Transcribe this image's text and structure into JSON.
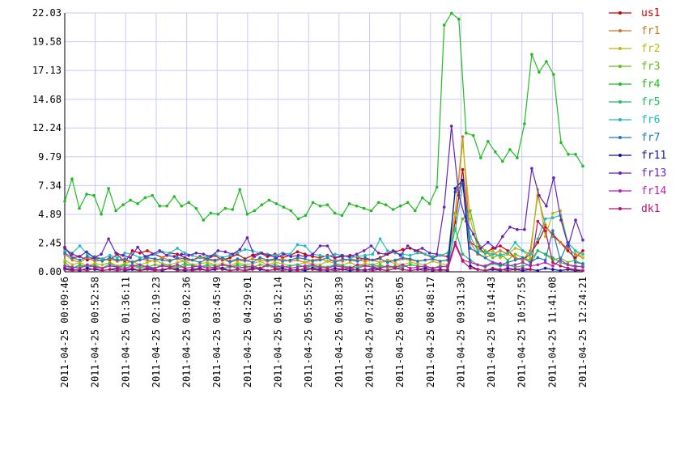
{
  "chart_data": {
    "type": "line",
    "title": "",
    "xlabel": "",
    "ylabel": "",
    "ylim": [
      0,
      22.03
    ],
    "grid": true,
    "legend_position": "right",
    "y_ticks": [
      "0.00",
      "2.45",
      "4.89",
      "7.34",
      "9.79",
      "12.24",
      "14.68",
      "17.13",
      "19.58",
      "22.03"
    ],
    "x_ticks": [
      "2011-04-25 00:09:46",
      "2011-04-25 00:52:58",
      "2011-04-25 01:36:11",
      "2011-04-25 02:19:23",
      "2011-04-25 03:02:36",
      "2011-04-25 03:45:49",
      "2011-04-25 04:29:01",
      "2011-04-25 05:12:14",
      "2011-04-25 05:55:27",
      "2011-04-25 06:38:39",
      "2011-04-25 07:21:52",
      "2011-04-25 08:05:05",
      "2011-04-25 08:48:17",
      "2011-04-25 09:31:30",
      "2011-04-25 10:14:43",
      "2011-04-25 10:57:55",
      "2011-04-25 11:41:08",
      "2011-04-25 12:24:21"
    ],
    "series": [
      {
        "name": "us1",
        "color": "#cc0000",
        "values": [
          2.1,
          1.2,
          1.3,
          1.0,
          1.2,
          1.1,
          1.0,
          1.5,
          0.8,
          1.8,
          1.6,
          1.8,
          1.5,
          1.2,
          1.6,
          1.5,
          1.2,
          1.0,
          1.3,
          1.1,
          1.4,
          1.0,
          1.2,
          1.5,
          1.1,
          1.4,
          1.6,
          1.3,
          1.5,
          1.2,
          1.4,
          1.7,
          1.5,
          1.3,
          1.2,
          1.4,
          1.2,
          1.3,
          1.4,
          1.2,
          1.1,
          1.0,
          1.2,
          1.5,
          1.7,
          1.9,
          2.0,
          1.8,
          1.5,
          1.2,
          1.4,
          1.3,
          4.2,
          8.7,
          2.5,
          2.1,
          1.6,
          2.0,
          2.2,
          1.8,
          1.2,
          1.0,
          1.5,
          2.5,
          3.8,
          3.2,
          2.5,
          1.8,
          1.2,
          1.8
        ]
      },
      {
        "name": "fr1",
        "color": "#cc7722",
        "values": [
          1.5,
          1.0,
          0.8,
          1.2,
          0.9,
          1.0,
          1.1,
          0.9,
          1.0,
          0.8,
          1.1,
          1.0,
          0.9,
          1.2,
          1.0,
          1.1,
          0.9,
          1.0,
          1.2,
          1.0,
          0.9,
          1.1,
          0.8,
          1.0,
          0.9,
          1.1,
          1.0,
          0.9,
          1.0,
          1.1,
          0.9,
          1.0,
          0.8,
          1.0,
          1.1,
          0.9,
          1.0,
          0.9,
          1.1,
          1.0,
          0.9,
          1.0,
          0.8,
          1.0,
          0.9,
          1.1,
          1.0,
          0.9,
          1.0,
          1.1,
          0.9,
          1.0,
          5.0,
          11.5,
          2.5,
          1.5,
          1.2,
          1.5,
          1.8,
          1.5,
          1.2,
          1.0,
          1.8,
          6.5,
          4.0,
          3.0,
          2.5,
          2.0,
          1.5,
          1.2
        ]
      },
      {
        "name": "fr2",
        "color": "#bbbb11",
        "values": [
          1.0,
          0.6,
          0.8,
          0.5,
          0.7,
          0.6,
          0.8,
          0.5,
          0.7,
          0.9,
          0.6,
          0.8,
          1.0,
          0.7,
          0.6,
          0.8,
          0.9,
          0.6,
          0.7,
          0.8,
          0.6,
          0.7,
          0.5,
          0.8,
          0.6,
          0.7,
          0.9,
          0.6,
          0.8,
          0.7,
          0.5,
          0.6,
          0.8,
          0.7,
          0.6,
          0.9,
          0.7,
          0.6,
          0.8,
          0.5,
          0.7,
          0.6,
          0.8,
          0.9,
          0.7,
          0.6,
          0.8,
          0.7,
          0.6,
          0.9,
          0.7,
          0.6,
          4.8,
          11.0,
          4.5,
          2.0,
          1.5,
          1.8,
          1.2,
          1.5,
          2.0,
          1.8,
          1.2,
          7.0,
          3.0,
          5.0,
          5.2,
          2.5,
          1.8,
          1.2
        ]
      },
      {
        "name": "fr3",
        "color": "#66bb22",
        "values": [
          0.8,
          0.3,
          0.5,
          0.4,
          0.6,
          0.3,
          0.5,
          0.4,
          0.6,
          0.5,
          0.3,
          0.4,
          0.6,
          0.5,
          0.4,
          0.3,
          0.5,
          0.6,
          0.4,
          0.5,
          0.3,
          0.6,
          0.4,
          0.5,
          0.3,
          0.4,
          0.6,
          0.5,
          0.3,
          0.4,
          0.5,
          0.6,
          0.4,
          0.3,
          0.5,
          0.4,
          0.6,
          0.5,
          0.3,
          0.4,
          0.5,
          0.4,
          0.6,
          0.3,
          0.5,
          0.4,
          0.6,
          0.5,
          0.4,
          0.3,
          0.5,
          0.4,
          2.5,
          4.5,
          5.2,
          2.5,
          1.8,
          1.2,
          1.5,
          1.0,
          1.5,
          1.2,
          1.0,
          1.8,
          1.5,
          1.0,
          1.2,
          0.8,
          1.0,
          0.6
        ]
      },
      {
        "name": "fr4",
        "color": "#22bb22",
        "values": [
          6.0,
          7.9,
          5.4,
          6.6,
          6.5,
          4.9,
          7.1,
          5.2,
          5.7,
          6.1,
          5.8,
          6.3,
          6.5,
          5.6,
          5.6,
          6.4,
          5.6,
          5.9,
          5.4,
          4.4,
          5.0,
          4.9,
          5.4,
          5.3,
          7.0,
          4.9,
          5.2,
          5.7,
          6.1,
          5.8,
          5.5,
          5.2,
          4.5,
          4.8,
          5.9,
          5.6,
          5.7,
          5.0,
          4.8,
          5.8,
          5.6,
          5.4,
          5.2,
          5.9,
          5.7,
          5.3,
          5.6,
          5.9,
          5.2,
          6.3,
          5.8,
          7.2,
          21.0,
          22.0,
          21.5,
          11.8,
          11.6,
          9.7,
          11.1,
          10.2,
          9.4,
          10.4,
          9.7,
          12.6,
          18.5,
          17.0,
          17.9,
          16.8,
          11.0,
          10.0,
          10.0,
          9.0
        ]
      },
      {
        "name": "fr5",
        "color": "#22bb66",
        "values": [
          0.5,
          0.3,
          0.6,
          0.4,
          0.5,
          0.3,
          0.7,
          0.4,
          0.5,
          0.6,
          0.4,
          0.5,
          0.3,
          0.6,
          0.5,
          0.4,
          0.7,
          0.5,
          0.4,
          0.6,
          0.5,
          0.3,
          0.4,
          0.6,
          0.5,
          0.4,
          0.3,
          0.5,
          0.6,
          0.4,
          0.5,
          0.6,
          0.4,
          0.5,
          0.3,
          0.4,
          0.6,
          0.5,
          0.4,
          0.3,
          0.5,
          0.6,
          0.4,
          0.5,
          0.3,
          0.4,
          0.6,
          0.5,
          0.4,
          0.3,
          0.5,
          0.4,
          3.7,
          1.5,
          1.0,
          0.6,
          0.4,
          0.7,
          0.5,
          0.6,
          0.4,
          0.5,
          0.6,
          1.8,
          1.5,
          1.2,
          0.8,
          0.6,
          0.4,
          0.5
        ]
      },
      {
        "name": "fr6",
        "color": "#22bbbb",
        "values": [
          1.8,
          1.6,
          2.2,
          1.5,
          1.3,
          1.1,
          1.4,
          1.2,
          1.6,
          1.5,
          1.2,
          1.3,
          1.5,
          1.7,
          1.6,
          2.0,
          1.6,
          1.4,
          1.2,
          1.3,
          1.5,
          1.2,
          1.4,
          1.6,
          1.9,
          1.8,
          1.6,
          1.5,
          1.4,
          1.6,
          1.5,
          2.3,
          2.2,
          1.5,
          1.4,
          1.3,
          1.5,
          1.4,
          1.2,
          1.3,
          1.4,
          1.5,
          2.8,
          1.8,
          1.6,
          1.5,
          1.4,
          1.6,
          1.5,
          1.3,
          1.4,
          1.6,
          3.5,
          7.3,
          3.0,
          1.8,
          1.6,
          1.5,
          1.4,
          1.6,
          2.5,
          1.8,
          1.5,
          2.8,
          4.5,
          4.6,
          4.8,
          2.5,
          1.8,
          1.5
        ]
      },
      {
        "name": "fr7",
        "color": "#2277bb",
        "values": [
          1.6,
          1.2,
          1.0,
          1.3,
          1.1,
          0.9,
          1.2,
          1.0,
          1.1,
          0.8,
          1.0,
          1.2,
          1.1,
          1.0,
          0.9,
          1.2,
          1.1,
          1.0,
          0.8,
          1.1,
          1.0,
          1.2,
          0.9,
          1.1,
          1.0,
          0.8,
          1.2,
          1.0,
          1.1,
          0.9,
          1.0,
          1.2,
          1.1,
          0.9,
          1.0,
          1.2,
          0.8,
          1.1,
          1.0,
          0.9,
          1.2,
          1.0,
          1.1,
          0.8,
          1.0,
          1.2,
          1.1,
          0.9,
          1.0,
          1.1,
          0.9,
          1.0,
          6.8,
          7.5,
          2.0,
          1.6,
          1.2,
          0.8,
          0.6,
          0.8,
          1.0,
          1.2,
          0.8,
          1.2,
          1.0,
          3.5,
          1.0,
          2.5,
          0.8,
          0.7
        ]
      },
      {
        "name": "fr11",
        "color": "#1111aa",
        "values": [
          0.3,
          0.2,
          0.1,
          0.3,
          0.2,
          0.1,
          0.2,
          0.3,
          0.1,
          0.2,
          0.1,
          0.3,
          0.2,
          0.1,
          0.3,
          0.2,
          0.1,
          0.2,
          0.3,
          0.1,
          0.2,
          0.3,
          0.1,
          0.2,
          0.1,
          0.3,
          0.2,
          0.1,
          0.2,
          0.3,
          0.1,
          0.2,
          0.1,
          0.3,
          0.2,
          0.1,
          0.3,
          0.2,
          0.1,
          0.2,
          0.1,
          0.3,
          0.2,
          0.1,
          0.3,
          0.2,
          0.1,
          0.2,
          0.3,
          0.1,
          0.2,
          0.1,
          7.1,
          7.8,
          0.5,
          0.2,
          0.1,
          0.2,
          0.1,
          0.3,
          0.2,
          0.1,
          0.2,
          0.1,
          0.3,
          0.2,
          0.1,
          0.2,
          0.1,
          0.1
        ]
      },
      {
        "name": "fr13",
        "color": "#6622bb",
        "values": [
          2.0,
          1.5,
          1.3,
          1.7,
          1.2,
          1.5,
          2.8,
          1.6,
          1.4,
          1.2,
          2.1,
          1.3,
          1.5,
          1.8,
          1.4,
          1.3,
          1.5,
          1.4,
          1.6,
          1.5,
          1.3,
          1.8,
          1.7,
          1.5,
          1.9,
          2.9,
          1.3,
          1.6,
          1.4,
          1.2,
          1.5,
          1.3,
          1.4,
          1.3,
          1.5,
          2.2,
          2.2,
          1.2,
          1.4,
          1.3,
          1.5,
          1.8,
          2.2,
          1.6,
          1.5,
          1.8,
          1.4,
          2.2,
          1.8,
          2.0,
          1.6,
          1.5,
          5.5,
          12.4,
          6.5,
          4.3,
          3.2,
          2.0,
          2.5,
          2.0,
          3.0,
          3.8,
          3.6,
          3.6,
          8.8,
          6.5,
          5.6,
          8.0,
          4.4,
          2.2,
          4.4,
          2.7
        ]
      },
      {
        "name": "fr14",
        "color": "#bb22bb",
        "values": [
          0.5,
          0.4,
          0.3,
          0.6,
          0.4,
          0.3,
          0.5,
          0.4,
          0.3,
          0.5,
          0.6,
          0.4,
          0.3,
          0.5,
          0.4,
          0.6,
          0.3,
          0.4,
          0.5,
          0.3,
          0.4,
          0.6,
          0.5,
          0.3,
          0.4,
          0.5,
          0.3,
          0.6,
          0.4,
          0.5,
          0.3,
          0.4,
          0.5,
          0.6,
          0.4,
          0.3,
          0.5,
          0.4,
          0.3,
          0.6,
          0.5,
          0.4,
          0.3,
          0.5,
          0.4,
          0.6,
          0.3,
          0.4,
          0.5,
          0.3,
          0.4,
          0.5,
          2.5,
          1.0,
          0.8,
          0.6,
          0.5,
          0.8,
          0.7,
          0.5,
          0.6,
          0.8,
          0.5,
          0.6,
          0.8,
          0.5,
          1.0,
          0.6,
          0.5,
          0.4
        ]
      },
      {
        "name": "dk1",
        "color": "#bb1166",
        "values": [
          0.2,
          0.1,
          0.2,
          0.1,
          0.3,
          0.1,
          0.2,
          0.1,
          0.2,
          0.3,
          0.1,
          0.2,
          0.1,
          0.2,
          0.3,
          0.1,
          0.2,
          0.1,
          0.2,
          0.1,
          0.3,
          0.2,
          0.1,
          0.2,
          0.1,
          0.2,
          0.3,
          0.1,
          0.2,
          0.1,
          0.2,
          0.1,
          0.3,
          0.2,
          0.1,
          0.2,
          0.1,
          0.2,
          0.3,
          0.1,
          0.2,
          0.1,
          0.2,
          0.1,
          0.3,
          0.2,
          0.1,
          0.2,
          0.1,
          0.2,
          0.1,
          0.2,
          2.3,
          0.9,
          0.3,
          0.2,
          0.1,
          0.3,
          0.2,
          0.1,
          0.2,
          0.3,
          0.2,
          4.3,
          3.5,
          0.8,
          0.5,
          0.3,
          0.2,
          0.1
        ]
      }
    ]
  }
}
